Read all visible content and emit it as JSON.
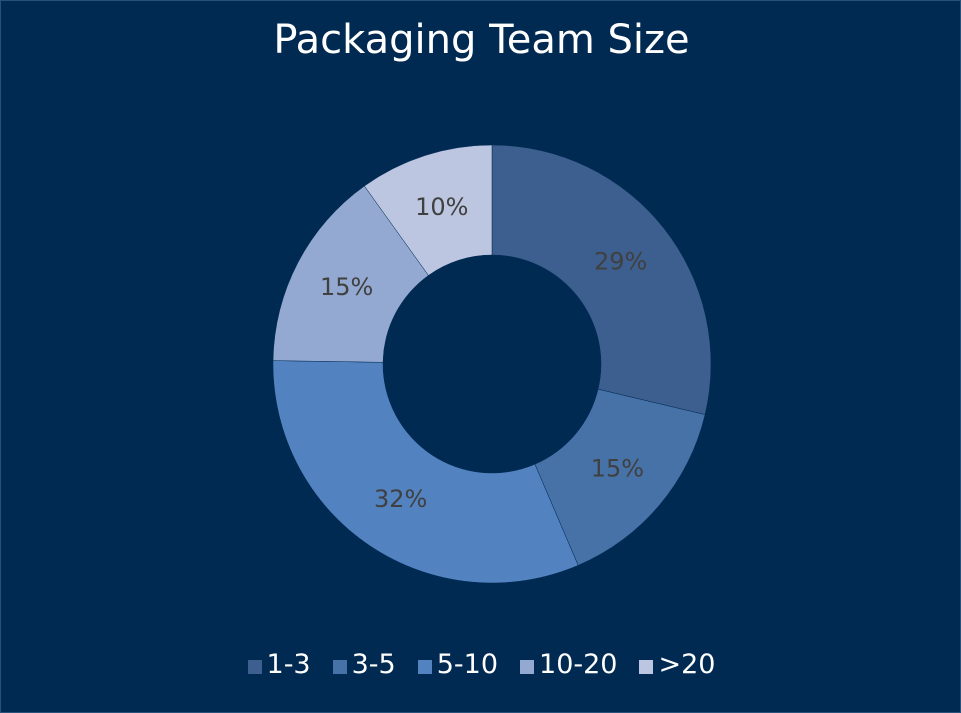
{
  "chart_data": {
    "type": "pie",
    "variant": "doughnut",
    "title": "Packaging Team Size",
    "categories": [
      "1-3",
      "3-5",
      "5-10",
      "10-20",
      ">20"
    ],
    "values": [
      29,
      15,
      32,
      15,
      10
    ],
    "value_labels": [
      "29%",
      "15%",
      "32%",
      "15%",
      "10%"
    ],
    "colors": [
      "#3c5f8f",
      "#4672a8",
      "#5282c0",
      "#93a9d2",
      "#bcc6e1"
    ],
    "legend_position": "bottom",
    "background": "#002a52"
  }
}
